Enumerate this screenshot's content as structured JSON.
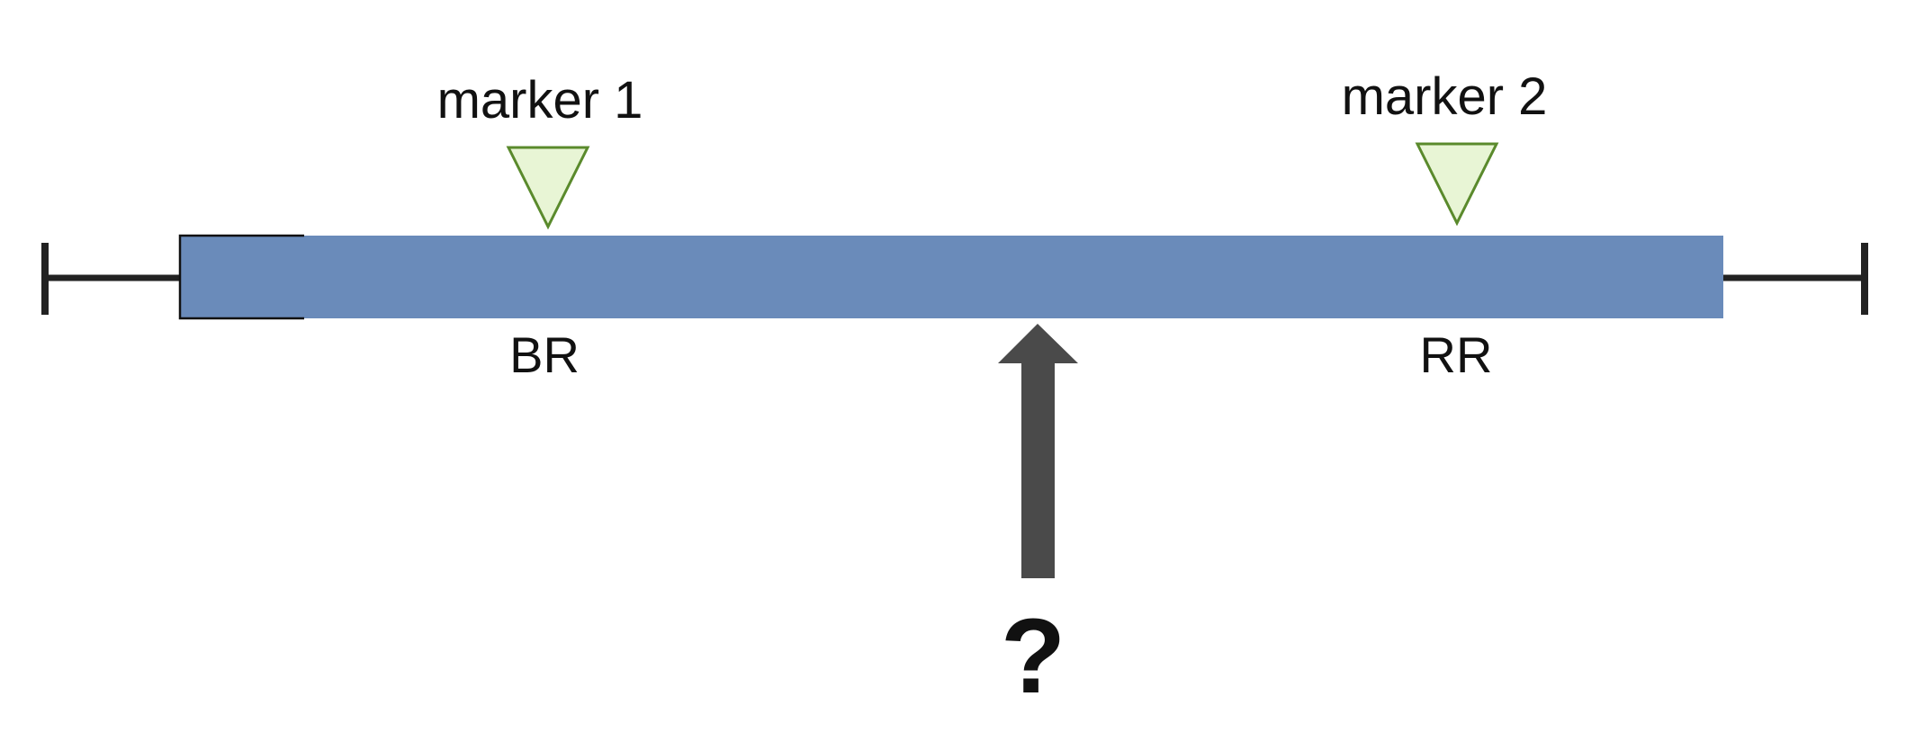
{
  "diagram": {
    "markers": [
      {
        "label": "marker 1"
      },
      {
        "label": "marker 2"
      }
    ],
    "regions": [
      {
        "label": "BR"
      },
      {
        "label": "RR"
      }
    ],
    "question": "?",
    "colors": {
      "bar": "#6a8bba",
      "line": "#222222",
      "marker_fill": "#e8f5d5",
      "marker_stroke": "#5a8a2c",
      "arrow": "#4a4a4a"
    }
  }
}
